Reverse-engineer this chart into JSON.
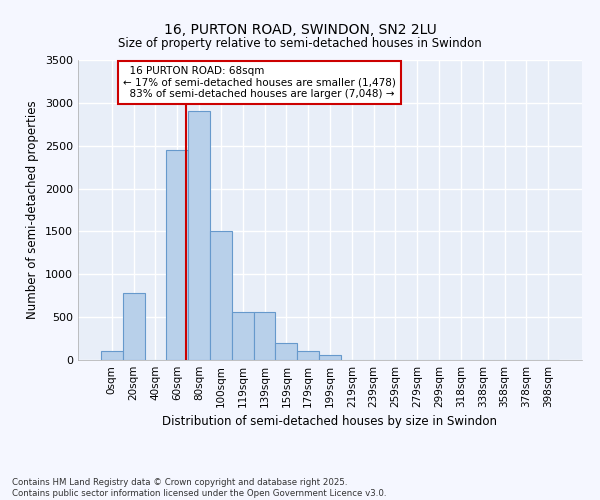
{
  "title": "16, PURTON ROAD, SWINDON, SN2 2LU",
  "subtitle": "Size of property relative to semi-detached houses in Swindon",
  "xlabel": "Distribution of semi-detached houses by size in Swindon",
  "ylabel": "Number of semi-detached properties",
  "categories": [
    "0sqm",
    "20sqm",
    "40sqm",
    "60sqm",
    "80sqm",
    "100sqm",
    "119sqm",
    "139sqm",
    "159sqm",
    "179sqm",
    "199sqm",
    "219sqm",
    "239sqm",
    "259sqm",
    "279sqm",
    "299sqm",
    "318sqm",
    "338sqm",
    "358sqm",
    "378sqm",
    "398sqm"
  ],
  "values": [
    100,
    780,
    0,
    2450,
    2900,
    1500,
    560,
    560,
    200,
    110,
    60,
    0,
    0,
    0,
    0,
    0,
    0,
    0,
    0,
    0,
    0
  ],
  "bar_color": "#b8d0ea",
  "bar_edge_color": "#6699cc",
  "fig_background": "#f5f7ff",
  "ax_background": "#e8eef8",
  "grid_color": "#ffffff",
  "property_size": 68,
  "property_label": "16 PURTON ROAD: 68sqm",
  "pct_smaller": 17,
  "pct_larger": 83,
  "count_smaller": 1478,
  "count_larger": 7048,
  "annotation_box_color": "#cc0000",
  "vline_color": "#cc0000",
  "ylim": [
    0,
    3500
  ],
  "yticks": [
    0,
    500,
    1000,
    1500,
    2000,
    2500,
    3000,
    3500
  ],
  "footer": "Contains HM Land Registry data © Crown copyright and database right 2025.\nContains public sector information licensed under the Open Government Licence v3.0."
}
